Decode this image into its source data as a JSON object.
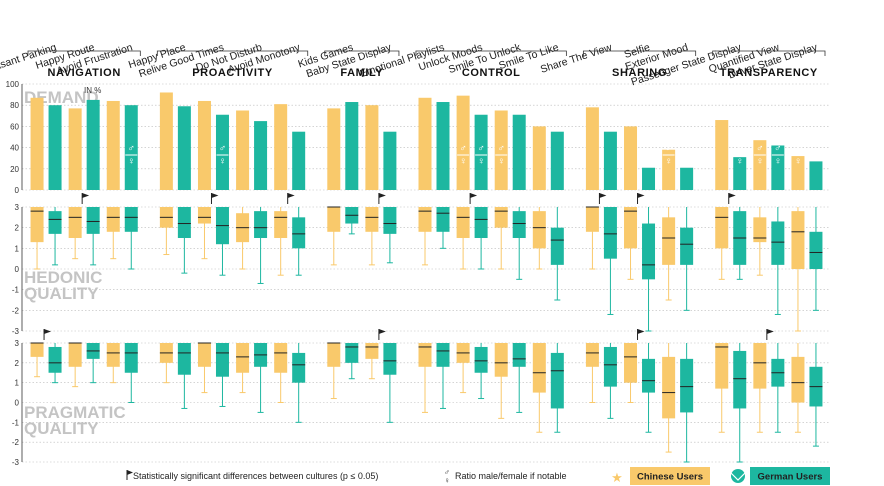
{
  "chart_data": {
    "type": "bar+boxplot",
    "colors": {
      "chinese": "#f9c96b",
      "german": "#1db7a0",
      "text": "#222222",
      "grid": "#bbbbbb"
    },
    "groups": [
      {
        "name": "NAVIGATION",
        "features": [
          "Pleasant Parking",
          "Happy Route",
          "Avoid Frustration"
        ]
      },
      {
        "name": "PROACTIVITY",
        "features": [
          "Happy Place",
          "Relive Good Times",
          "Do Not Disturb",
          "Avoid Monotony"
        ]
      },
      {
        "name": "FAMILY",
        "features": [
          "Kids Games",
          "Baby State Display"
        ]
      },
      {
        "name": "CONTROL",
        "features": [
          "Emotional Playlists",
          "Unlock Moods",
          "Smile To Unlock",
          "Smile To Like"
        ]
      },
      {
        "name": "SHARING",
        "features": [
          "Share The View",
          "Selfie",
          "Exterior Mood"
        ]
      },
      {
        "name": "TRANSPARENCY",
        "features": [
          "Passenger State Display",
          "Quantified View",
          "Driver State Display"
        ]
      }
    ],
    "panels": [
      {
        "title": "DEMAND",
        "unit": "IN %",
        "kind": "bar",
        "ylim": [
          0,
          100
        ],
        "yticks": [
          "0",
          "20",
          "40",
          "60",
          "80",
          "100"
        ],
        "series": [
          {
            "name": "Chinese Users",
            "values": [
              87,
              77,
              84,
              92,
              84,
              75,
              81,
              77,
              80,
              87,
              89,
              75,
              60,
              78,
              60,
              38,
              66,
              47,
              32
            ]
          },
          {
            "name": "German Users",
            "values": [
              80,
              85,
              80,
              79,
              71,
              65,
              55,
              83,
              55,
              83,
              71,
              71,
              55,
              55,
              21,
              21,
              31,
              42,
              27
            ]
          }
        ],
        "gender_marks": [
          {
            "feature": "Avoid Frustration",
            "culture": "German Users"
          },
          {
            "feature": "Relive Good Times",
            "culture": "German Users"
          },
          {
            "feature": "Unlock Moods",
            "culture": "Chinese Users"
          },
          {
            "feature": "Unlock Moods",
            "culture": "German Users"
          },
          {
            "feature": "Smile To Unlock",
            "culture": "Chinese Users"
          },
          {
            "feature": "Exterior Mood",
            "culture": "Chinese Users"
          },
          {
            "feature": "Exterior Mood",
            "culture": "German Users"
          },
          {
            "feature": "Passenger State Display",
            "culture": "German Users"
          },
          {
            "feature": "Quantified View",
            "culture": "Chinese Users"
          },
          {
            "feature": "Quantified View",
            "culture": "German Users"
          },
          {
            "feature": "Driver State Display",
            "culture": "Chinese Users"
          }
        ]
      },
      {
        "title": "HEDONIC",
        "subtitle": "QUALITY",
        "kind": "box",
        "ylim": [
          -3,
          3
        ],
        "yticks": [
          "-3",
          "-2",
          "-1",
          "0",
          "1",
          "2",
          "3"
        ],
        "series": [
          {
            "name": "Chinese Users",
            "boxes": [
              [
                0,
                1.3,
                2.8,
                3,
                3
              ],
              [
                0.5,
                1.5,
                2.5,
                3,
                3
              ],
              [
                0.5,
                1.8,
                2.5,
                3,
                3
              ],
              [
                0.7,
                2,
                2.5,
                3,
                3
              ],
              [
                0.5,
                2.2,
                2.5,
                3,
                3
              ],
              [
                0,
                1.3,
                2,
                2.7,
                3
              ],
              [
                -0.3,
                1.5,
                2.5,
                2.8,
                3
              ],
              [
                0.2,
                1.8,
                3,
                3,
                3
              ],
              [
                0.2,
                1.8,
                2.5,
                3,
                3
              ],
              [
                0.2,
                1.8,
                2.8,
                3,
                3
              ],
              [
                0,
                1.5,
                2.5,
                3,
                3
              ],
              [
                0,
                2,
                2.8,
                3,
                3
              ],
              [
                0,
                1,
                2,
                2.8,
                3
              ],
              [
                0,
                1.8,
                3,
                3,
                3
              ],
              [
                -0.5,
                1,
                2.8,
                3,
                3
              ],
              [
                -1.5,
                0.2,
                1.5,
                2.5,
                3
              ],
              [
                -0.5,
                1,
                2.5,
                3,
                3
              ],
              [
                -0.3,
                1.3,
                1.5,
                2.5,
                3
              ],
              [
                -3,
                0,
                1.8,
                2.8,
                3
              ]
            ]
          },
          {
            "name": "German Users",
            "boxes": [
              [
                0.2,
                1.7,
                2.4,
                2.8,
                3
              ],
              [
                0.2,
                1.7,
                2.3,
                3,
                3
              ],
              [
                0,
                1.8,
                2.5,
                3,
                3
              ],
              [
                -0.2,
                1.5,
                2.2,
                3,
                3
              ],
              [
                -0.3,
                1.2,
                2.1,
                3,
                3
              ],
              [
                -0.7,
                1.5,
                2,
                2.8,
                3
              ],
              [
                -0.3,
                1,
                1.7,
                2.5,
                3
              ],
              [
                1.7,
                2.2,
                2.6,
                3,
                3
              ],
              [
                0.3,
                1.7,
                2.2,
                3,
                3
              ],
              [
                1,
                1.8,
                2.7,
                3,
                3
              ],
              [
                0,
                1.5,
                2.4,
                3,
                3
              ],
              [
                -0.5,
                1.5,
                2.2,
                2.8,
                3
              ],
              [
                -1.5,
                0.2,
                1.4,
                2,
                3
              ],
              [
                -2.2,
                0.5,
                1.7,
                3,
                3
              ],
              [
                -3,
                -0.5,
                0.2,
                2.2,
                3
              ],
              [
                -2,
                0.2,
                1.2,
                2,
                3
              ],
              [
                -0.5,
                0.2,
                1.5,
                2.8,
                3
              ],
              [
                -2.2,
                0.2,
                1.3,
                2.3,
                3
              ],
              [
                -2,
                0,
                0.8,
                1.8,
                3
              ]
            ]
          }
        ],
        "sig_flags": [
          "Happy Route",
          "Relive Good Times",
          "Avoid Monotony",
          "Baby State Display",
          "Unlock Moods",
          "Share The View",
          "Selfie",
          "Passenger State Display"
        ]
      },
      {
        "title": "PRAGMATIC",
        "subtitle": "QUALITY",
        "kind": "box",
        "ylim": [
          -3,
          3
        ],
        "yticks": [
          "-3",
          "-2",
          "-1",
          "0",
          "1",
          "2",
          "3"
        ],
        "series": [
          {
            "name": "Chinese Users",
            "boxes": [
              [
                1.3,
                2.3,
                3,
                3,
                3
              ],
              [
                0.8,
                1.8,
                3,
                3,
                3
              ],
              [
                1,
                1.8,
                2.5,
                3,
                3
              ],
              [
                1,
                2,
                2.5,
                3,
                3
              ],
              [
                0.5,
                1.8,
                3,
                3,
                3
              ],
              [
                0.5,
                1.5,
                2.3,
                3,
                3
              ],
              [
                0,
                1.5,
                2.5,
                3,
                3
              ],
              [
                0.2,
                1.8,
                3,
                3,
                3
              ],
              [
                1.2,
                2.2,
                2.8,
                3,
                3
              ],
              [
                -0.5,
                1.8,
                2.8,
                3,
                3
              ],
              [
                0.5,
                2,
                2.5,
                3,
                3
              ],
              [
                -0.8,
                1.3,
                2,
                3,
                3
              ],
              [
                -1.5,
                0.5,
                1.5,
                3,
                3
              ],
              [
                0,
                1.8,
                2.5,
                3,
                3
              ],
              [
                0,
                1,
                2.3,
                3,
                3
              ],
              [
                -2.5,
                -0.8,
                0.5,
                2.3,
                3
              ],
              [
                -1.5,
                0.7,
                2.8,
                3,
                3
              ],
              [
                -1.5,
                0.7,
                2,
                3,
                3
              ],
              [
                -1.5,
                0,
                1,
                2.3,
                3
              ]
            ]
          },
          {
            "name": "German Users",
            "boxes": [
              [
                1,
                1.5,
                2,
                2.8,
                3
              ],
              [
                1,
                2.2,
                2.6,
                3,
                3
              ],
              [
                0,
                1.5,
                2.5,
                3,
                3
              ],
              [
                -0.3,
                1.4,
                2.5,
                3,
                3
              ],
              [
                -0.2,
                1.3,
                2.5,
                3,
                3
              ],
              [
                -0.5,
                1.8,
                2.4,
                3,
                3
              ],
              [
                -1,
                1,
                1.9,
                2.5,
                3
              ],
              [
                1.2,
                2,
                2.8,
                3,
                3
              ],
              [
                -1,
                1.4,
                2.1,
                3,
                3
              ],
              [
                -0.3,
                1.8,
                2.6,
                3,
                3
              ],
              [
                0.2,
                1.5,
                2.1,
                2.8,
                3
              ],
              [
                -0.5,
                1.8,
                2.2,
                3,
                3
              ],
              [
                -1.5,
                -0.3,
                1.6,
                2.5,
                3
              ],
              [
                -0.8,
                0.8,
                1.9,
                2.8,
                3
              ],
              [
                -1.5,
                0.5,
                1.1,
                2.2,
                3
              ],
              [
                -3,
                -0.5,
                0.8,
                2.2,
                3
              ],
              [
                -3,
                -0.3,
                1.2,
                2.6,
                3
              ],
              [
                -1.5,
                0.8,
                1.5,
                2.2,
                3
              ],
              [
                -2.2,
                -0.2,
                0.8,
                1.8,
                3
              ]
            ]
          }
        ],
        "sig_flags": [
          "Pleasant Parking",
          "Baby State Display",
          "Selfie",
          "Quantified View"
        ]
      }
    ],
    "legend": {
      "flag_text": "Statistically significant differences between cultures (p ≤ 0.05)",
      "gender_text": "Ratio male/female if notable",
      "chinese_label": "Chinese Users",
      "german_label": "German Users"
    }
  }
}
